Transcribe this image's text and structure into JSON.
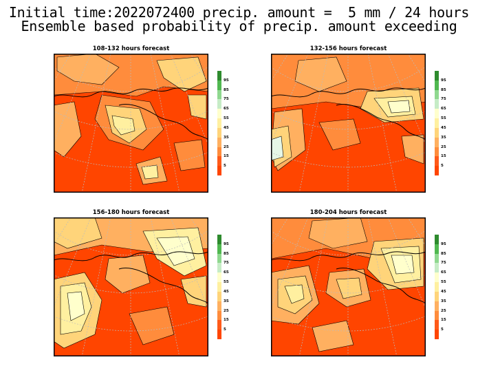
{
  "title_line1": "Initial time:2022072400 precip. amount =  5 mm / 24 hours",
  "title_line2": "Ensemble based probability of precip. amount exceeding",
  "colorbar": {
    "labels": [
      "95",
      "85",
      "75",
      "65",
      "55",
      "45",
      "35",
      "25",
      "15",
      "5"
    ],
    "colors": [
      "#2e8b2e",
      "#50b850",
      "#8fd88f",
      "#c6ecc6",
      "#ffffcc",
      "#fff0a0",
      "#ffd47a",
      "#ffb060",
      "#ff8c3c",
      "#ff5a1a",
      "#ff4500"
    ]
  },
  "panels": [
    {
      "title": "108-132 hours forecast",
      "col": 0,
      "row": 0
    },
    {
      "title": "132-156 hours forecast",
      "col": 1,
      "row": 0
    },
    {
      "title": "156-180 hours forecast",
      "col": 0,
      "row": 1
    },
    {
      "title": "180-204 hours forecast",
      "col": 1,
      "row": 1
    }
  ]
}
